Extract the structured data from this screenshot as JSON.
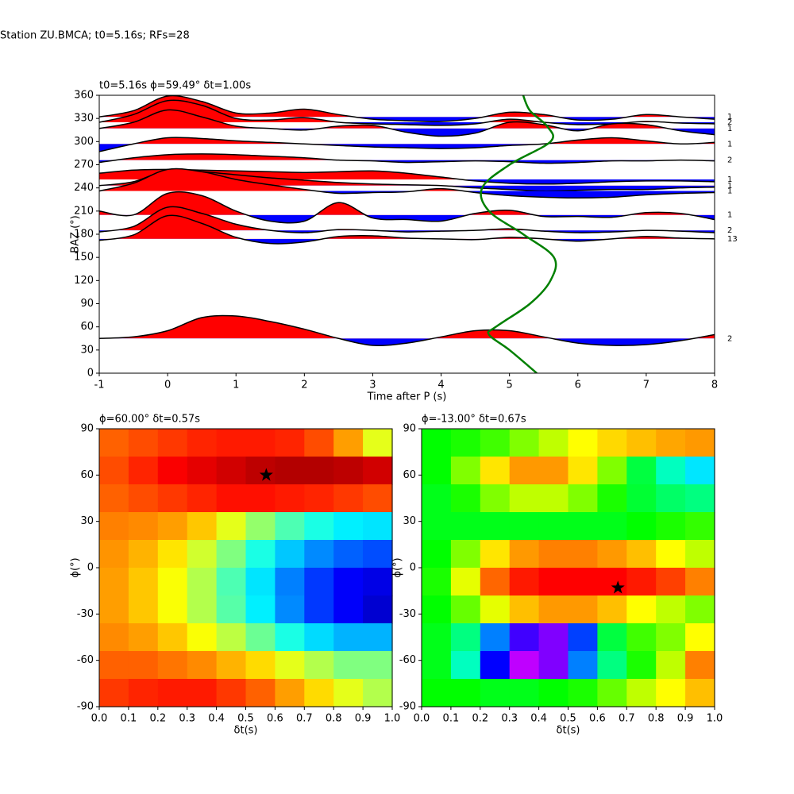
{
  "title": "Station ZU.BMCA; t0=5.16s; RFs=28",
  "chart_data": [
    {
      "type": "wiggle",
      "title": "t0=5.16s ϕ=59.49° δt=1.00s",
      "xlabel": "Time after P (s)",
      "ylabel": "BAZ (°)",
      "xlim": [
        -1,
        8
      ],
      "ylim": [
        0,
        360
      ],
      "xticks": [
        -1,
        0,
        1,
        2,
        3,
        4,
        5,
        6,
        7,
        8
      ],
      "yticks": [
        0,
        30,
        60,
        90,
        120,
        150,
        180,
        210,
        240,
        270,
        300,
        330,
        360
      ],
      "positive_color": "#ff0000",
      "negative_color": "#0000ff",
      "x": [
        -1,
        -0.5,
        0,
        0.5,
        1,
        1.5,
        2,
        2.5,
        3,
        3.5,
        4,
        4.5,
        5,
        5.5,
        6,
        6.5,
        7,
        7.5,
        8
      ],
      "traces": [
        {
          "baz": 332,
          "count": 1,
          "values": [
            0,
            8,
            27,
            20,
            5,
            5,
            10,
            3,
            -3,
            -5,
            -6,
            -2,
            6,
            3,
            -4,
            -3,
            3,
            0,
            -3
          ]
        },
        {
          "baz": 325,
          "count": 2,
          "values": [
            0,
            10,
            28,
            22,
            5,
            3,
            6,
            0,
            -2,
            -3,
            -4,
            -2,
            4,
            0,
            -3,
            -2,
            1,
            -1,
            -2
          ]
        },
        {
          "baz": 317,
          "count": 1,
          "values": [
            0,
            8,
            24,
            15,
            3,
            0,
            -2,
            3,
            4,
            -5,
            -10,
            -6,
            8,
            5,
            -3,
            6,
            5,
            -3,
            -8
          ]
        },
        {
          "baz": 297,
          "count": 1,
          "values": [
            -10,
            0,
            8,
            7,
            4,
            2,
            0,
            -2,
            -4,
            -5,
            -6,
            -5,
            -2,
            0,
            5,
            8,
            4,
            0,
            2
          ]
        },
        {
          "baz": 276,
          "count": 2,
          "values": [
            -3,
            3,
            7,
            8,
            7,
            5,
            3,
            0,
            -1,
            -3,
            -2,
            -1,
            -2,
            -4,
            -3,
            -1,
            -1,
            0,
            -1
          ]
        },
        {
          "baz": 251,
          "count": 1,
          "values": [
            8,
            12,
            13,
            12,
            11,
            10,
            9,
            10,
            11,
            8,
            3,
            -2,
            -5,
            -6,
            -5,
            -3,
            -2,
            -2,
            -3
          ]
        },
        {
          "baz": 243,
          "count": 1,
          "values": [
            0,
            5,
            20,
            18,
            14,
            10,
            7,
            4,
            2,
            1,
            0,
            -3,
            -5,
            -7,
            -6,
            -5,
            -5,
            -3,
            -2
          ]
        },
        {
          "baz": 236,
          "count": 1,
          "values": [
            0,
            10,
            28,
            25,
            15,
            8,
            2,
            -3,
            -2,
            -1,
            3,
            -2,
            -6,
            -8,
            -9,
            -8,
            -5,
            -3,
            -2
          ]
        },
        {
          "baz": 205,
          "count": 1,
          "values": [
            5,
            0,
            28,
            25,
            5,
            -8,
            -8,
            16,
            -4,
            -6,
            -8,
            2,
            6,
            -2,
            -2,
            -3,
            3,
            2,
            -6
          ]
        },
        {
          "baz": 185,
          "count": 2,
          "values": [
            -2,
            5,
            30,
            22,
            8,
            0,
            -3,
            1,
            0,
            -2,
            -1,
            0,
            2,
            -1,
            -3,
            -2,
            0,
            -1,
            -3
          ]
        },
        {
          "baz": 174,
          "count": 13,
          "values": [
            -2,
            5,
            30,
            20,
            2,
            -6,
            -4,
            3,
            4,
            1,
            0,
            -1,
            2,
            0,
            -3,
            0,
            3,
            1,
            0
          ]
        },
        {
          "baz": 45,
          "count": 2,
          "values": [
            0,
            2,
            10,
            27,
            29,
            22,
            12,
            0,
            -9,
            -6,
            2,
            10,
            10,
            2,
            -6,
            -9,
            -8,
            -3,
            5
          ]
        }
      ],
      "curve": {
        "color": "#008000",
        "x": [
          5.4,
          5.0,
          4.7,
          4.8,
          5.3,
          5.6,
          5.65,
          5.2,
          4.7,
          4.6,
          5.0,
          5.6,
          5.55,
          5.3,
          5.2
        ],
        "y": [
          0,
          30,
          50,
          60,
          90,
          120,
          150,
          180,
          210,
          240,
          270,
          300,
          320,
          340,
          360
        ]
      }
    },
    {
      "type": "heatmap",
      "title": "ϕ=60.00° δt=0.57s",
      "xlabel": "δt(s)",
      "ylabel": "ϕ(°)",
      "colormap": "jet",
      "xlim": [
        0,
        1
      ],
      "ylim": [
        -90,
        90
      ],
      "xticks": [
        {
          "value": 0,
          "label": "0.0"
        },
        0.1,
        0.2,
        0.3,
        0.4,
        0.5,
        0.6,
        0.7,
        0.8,
        0.9,
        {
          "value": 1,
          "label": "1.0"
        }
      ],
      "yticks": [
        -90,
        -60,
        -30,
        0,
        30,
        60,
        90
      ],
      "z": [
        [
          0.78,
          0.8,
          0.82,
          0.84,
          0.85,
          0.85,
          0.84,
          0.8,
          0.72,
          0.6
        ],
        [
          0.8,
          0.84,
          0.88,
          0.9,
          0.92,
          0.94,
          0.95,
          0.95,
          0.94,
          0.92
        ],
        [
          0.78,
          0.8,
          0.82,
          0.84,
          0.86,
          0.86,
          0.85,
          0.84,
          0.82,
          0.8
        ],
        [
          0.75,
          0.74,
          0.72,
          0.68,
          0.6,
          0.52,
          0.45,
          0.4,
          0.36,
          0.35
        ],
        [
          0.73,
          0.7,
          0.65,
          0.58,
          0.5,
          0.4,
          0.32,
          0.26,
          0.22,
          0.2
        ],
        [
          0.72,
          0.68,
          0.62,
          0.55,
          0.45,
          0.35,
          0.25,
          0.18,
          0.12,
          0.1
        ],
        [
          0.72,
          0.68,
          0.62,
          0.55,
          0.46,
          0.36,
          0.26,
          0.18,
          0.12,
          0.08
        ],
        [
          0.74,
          0.72,
          0.68,
          0.62,
          0.56,
          0.48,
          0.4,
          0.34,
          0.3,
          0.3
        ],
        [
          0.78,
          0.78,
          0.76,
          0.74,
          0.7,
          0.66,
          0.6,
          0.55,
          0.5,
          0.5
        ],
        [
          0.82,
          0.84,
          0.85,
          0.85,
          0.82,
          0.78,
          0.72,
          0.66,
          0.6,
          0.55
        ]
      ],
      "marker": {
        "x": 0.57,
        "y": 60
      }
    },
    {
      "type": "heatmap",
      "title": "ϕ=-13.00° δt=0.67s",
      "xlabel": "δt(s)",
      "ylabel": "ϕ(°)",
      "colormap": "gist_rainbow",
      "xlim": [
        0,
        1
      ],
      "ylim": [
        -90,
        90
      ],
      "xticks": [
        {
          "value": 0,
          "label": "0.0"
        },
        0.1,
        0.2,
        0.3,
        0.4,
        0.5,
        0.6,
        0.7,
        0.8,
        0.9,
        {
          "value": 1,
          "label": "1.0"
        }
      ],
      "yticks": [
        -90,
        -60,
        -30,
        0,
        30,
        60,
        90
      ],
      "z": [
        [
          0.4,
          0.38,
          0.35,
          0.3,
          0.25,
          0.2,
          0.17,
          0.15,
          0.13,
          0.12
        ],
        [
          0.4,
          0.3,
          0.18,
          0.12,
          0.12,
          0.18,
          0.3,
          0.45,
          0.55,
          0.62
        ],
        [
          0.42,
          0.38,
          0.3,
          0.25,
          0.25,
          0.3,
          0.38,
          0.44,
          0.48,
          0.5
        ],
        [
          0.42,
          0.42,
          0.42,
          0.42,
          0.42,
          0.42,
          0.42,
          0.4,
          0.38,
          0.36
        ],
        [
          0.4,
          0.3,
          0.18,
          0.12,
          0.1,
          0.1,
          0.12,
          0.15,
          0.2,
          0.25
        ],
        [
          0.38,
          0.22,
          0.08,
          0.02,
          0.0,
          0.0,
          0.0,
          0.02,
          0.05,
          0.1
        ],
        [
          0.4,
          0.32,
          0.22,
          0.15,
          0.12,
          0.12,
          0.15,
          0.2,
          0.25,
          0.3
        ],
        [
          0.42,
          0.5,
          0.7,
          0.85,
          0.9,
          0.75,
          0.45,
          0.35,
          0.3,
          0.2
        ],
        [
          0.42,
          0.55,
          0.8,
          0.95,
          0.9,
          0.7,
          0.5,
          0.38,
          0.25,
          0.1
        ],
        [
          0.4,
          0.4,
          0.42,
          0.42,
          0.4,
          0.38,
          0.32,
          0.25,
          0.2,
          0.15
        ]
      ],
      "marker": {
        "x": 0.67,
        "y": -13
      }
    }
  ]
}
